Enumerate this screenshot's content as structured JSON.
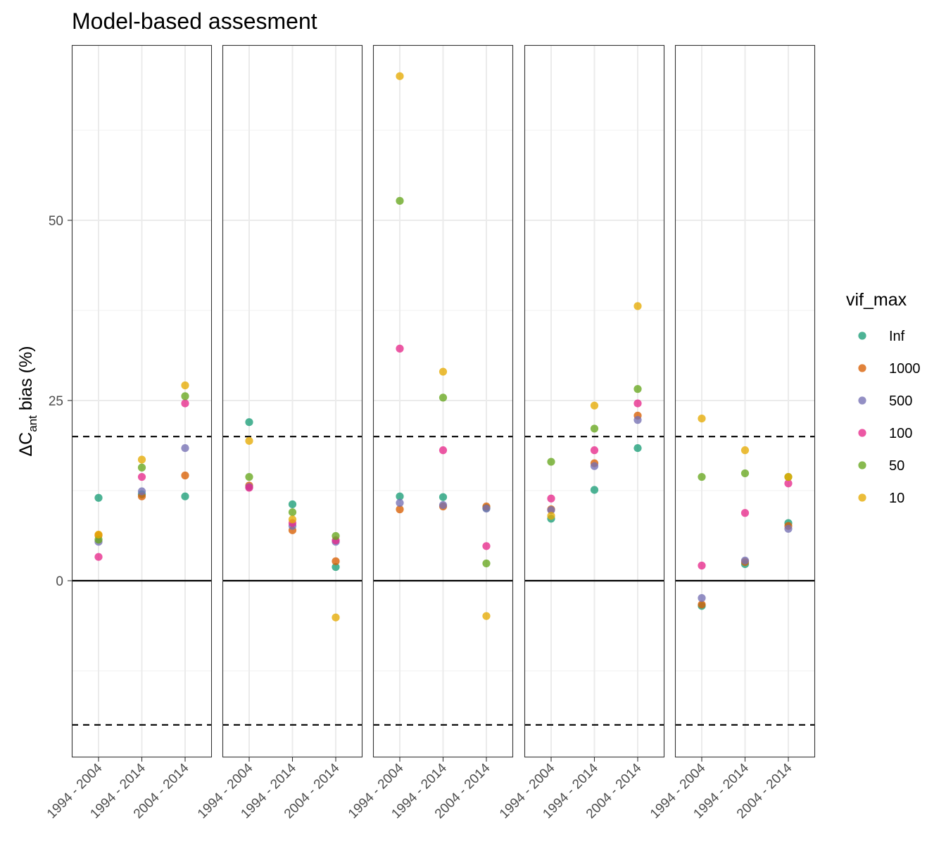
{
  "chart_data": {
    "type": "scatter",
    "title": "Model-based assesment",
    "ylabel": {
      "prefix": "ΔC",
      "subscript": "ant",
      "suffix": " bias (%)"
    },
    "xlabel": "",
    "ylim": [
      -24.5,
      74
    ],
    "y_ticks": [
      0,
      25,
      50
    ],
    "y_tick_labels": [
      "0",
      "25",
      "50"
    ],
    "categories": [
      "1994 - 2004",
      "1994 - 2014",
      "2004 - 2014"
    ],
    "reference_lines": [
      {
        "y": 0,
        "style": "solid"
      },
      {
        "y": 20,
        "style": "dashed"
      },
      {
        "y": -20,
        "style": "dashed"
      }
    ],
    "grid": true,
    "legend": {
      "title": "vif_max",
      "position": "right",
      "entries": [
        {
          "label": "Inf",
          "color": "#1b9e77"
        },
        {
          "label": "1000",
          "color": "#d95f02"
        },
        {
          "label": "500",
          "color": "#7570b3"
        },
        {
          "label": "100",
          "color": "#e7298a"
        },
        {
          "label": "50",
          "color": "#66a61e"
        },
        {
          "label": "10",
          "color": "#e6ab02"
        }
      ]
    },
    "series_order": [
      "Inf",
      "1000",
      "500",
      "100",
      "50",
      "10"
    ],
    "panels": [
      {
        "values": {
          "Inf": [
            11.5,
            12.0,
            11.7
          ],
          "1000": [
            6.3,
            11.7,
            14.6
          ],
          "500": [
            5.4,
            12.4,
            18.4
          ],
          "100": [
            3.3,
            14.4,
            24.6
          ],
          "50": [
            5.7,
            15.7,
            25.6
          ],
          "10": [
            6.4,
            16.8,
            27.1
          ]
        }
      },
      {
        "values": {
          "Inf": [
            22.0,
            10.6,
            1.9
          ],
          "1000": [
            13.2,
            7.0,
            2.7
          ],
          "500": [
            13.0,
            7.6,
            5.4
          ],
          "100": [
            12.9,
            8.0,
            5.6
          ],
          "50": [
            14.4,
            9.5,
            6.2
          ],
          "10": [
            19.4,
            8.5,
            -5.1
          ]
        }
      },
      {
        "values": {
          "Inf": [
            11.7,
            11.6,
            10.1
          ],
          "1000": [
            9.9,
            10.3,
            10.3
          ],
          "500": [
            10.8,
            10.5,
            10.0
          ],
          "100": [
            32.2,
            18.1,
            4.8
          ],
          "50": [
            52.7,
            25.4,
            2.4
          ],
          "10": [
            70.0,
            29.0,
            -4.9
          ]
        }
      },
      {
        "values": {
          "Inf": [
            8.6,
            12.6,
            18.4
          ],
          "1000": [
            9.9,
            16.3,
            22.9
          ],
          "500": [
            9.8,
            15.9,
            22.3
          ],
          "100": [
            11.4,
            18.1,
            24.6
          ],
          "50": [
            16.5,
            21.1,
            26.6
          ],
          "10": [
            9.0,
            24.3,
            38.1
          ]
        }
      },
      {
        "values": {
          "Inf": [
            -3.5,
            2.3,
            8.0
          ],
          "1000": [
            -3.3,
            2.6,
            7.6
          ],
          "500": [
            -2.4,
            2.8,
            7.2
          ],
          "100": [
            2.1,
            9.4,
            13.5
          ],
          "50": [
            14.4,
            14.9,
            14.4
          ],
          "10": [
            22.5,
            18.1,
            14.4
          ]
        }
      }
    ]
  }
}
